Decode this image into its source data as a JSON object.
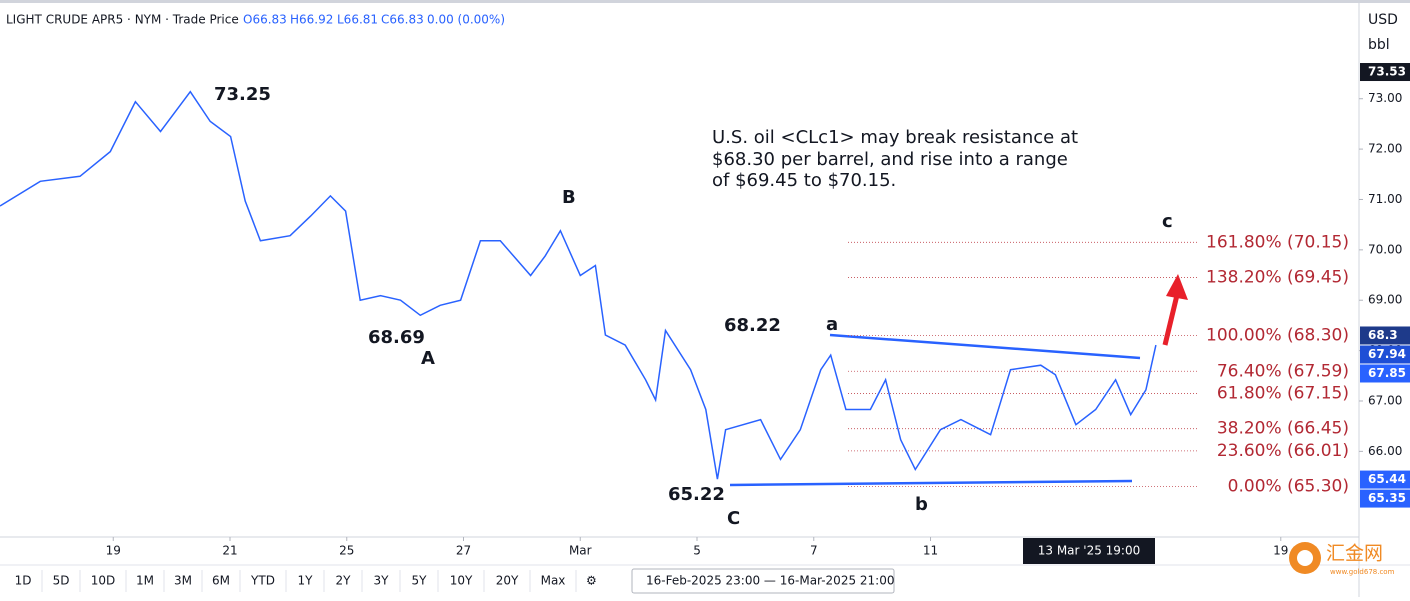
{
  "header": {
    "symbol": "LIGHT CRUDE APR5 · NYM · Trade Price",
    "open": "O66.83",
    "high": "H66.92",
    "low": "L66.81",
    "close": "C66.83",
    "change": "0.00 (0.00%)"
  },
  "units": {
    "currency": "USD",
    "unit": "bbl"
  },
  "chart_data": {
    "type": "line",
    "x": [
      -1.94,
      -1.25,
      -0.57,
      -0.05,
      0.38,
      0.81,
      1.32,
      1.66,
      2.01,
      2.26,
      2.52,
      3.03,
      3.38,
      3.72,
      3.98,
      4.23,
      4.58,
      4.92,
      5.26,
      5.6,
      5.95,
      6.29,
      6.63,
      7.15,
      7.4,
      7.66,
      8.0,
      8.26,
      8.43,
      8.77,
      9.12,
      9.29,
      9.46,
      9.89,
      10.15,
      10.35,
      10.49,
      11.09,
      11.43,
      11.77,
      12.12,
      12.29,
      12.55,
      12.97,
      13.23,
      13.49,
      13.74,
      14.17,
      14.52,
      15.03,
      15.37,
      15.89,
      16.14,
      16.49,
      16.83,
      17.17,
      17.43,
      17.69,
      17.86
    ],
    "series": [
      {
        "name": "LIGHT CRUDE APR5",
        "color": "#2962ff",
        "values": [
          70.87,
          71.36,
          71.46,
          71.95,
          72.94,
          72.35,
          73.14,
          72.55,
          72.25,
          70.97,
          70.18,
          70.28,
          70.67,
          71.07,
          70.77,
          69.0,
          69.09,
          69.0,
          68.7,
          68.9,
          69.0,
          70.18,
          70.18,
          69.49,
          69.88,
          70.38,
          69.49,
          69.69,
          68.31,
          68.11,
          67.42,
          67.02,
          68.4,
          67.62,
          66.83,
          65.45,
          66.43,
          66.63,
          65.84,
          66.43,
          67.62,
          67.91,
          66.83,
          66.83,
          67.42,
          66.23,
          65.64,
          66.43,
          66.63,
          66.33,
          67.62,
          67.71,
          67.52,
          66.53,
          66.83,
          67.42,
          66.73,
          67.22,
          68.11
        ]
      }
    ],
    "xlim": [
      -1.94,
      21.34
    ],
    "xticks": [
      {
        "value": 0,
        "label": "19"
      },
      {
        "value": 2,
        "label": "21"
      },
      {
        "value": 4,
        "label": "25"
      },
      {
        "value": 6,
        "label": "27"
      },
      {
        "value": 8,
        "label": "Mar"
      },
      {
        "value": 10,
        "label": "5"
      },
      {
        "value": 12,
        "label": "7"
      },
      {
        "value": 14,
        "label": "11"
      },
      {
        "value": 20,
        "label": "19"
      }
    ],
    "crosshair_label": "13 Mar '25   19:00",
    "ylim": [
      64.3,
      74.9
    ],
    "yticks": [
      {
        "value": 66,
        "label": "66.00"
      },
      {
        "value": 67,
        "label": "67.00"
      },
      {
        "value": 68,
        "label": "68.00"
      },
      {
        "value": 69,
        "label": "69.00"
      },
      {
        "value": 70,
        "label": "70.00"
      },
      {
        "value": 71,
        "label": "71.00"
      },
      {
        "value": 72,
        "label": "72.00"
      },
      {
        "value": 73,
        "label": "73.00"
      }
    ],
    "price_tags": [
      {
        "value": 73.53,
        "color": "#131722"
      },
      {
        "value": 68.3,
        "color": "#1e3a8a"
      },
      {
        "value": 67.94,
        "color": "#1f4fd6"
      },
      {
        "value": 67.85,
        "color": "#2962ff"
      },
      {
        "value": 65.44,
        "color": "#2962ff"
      },
      {
        "value": 65.35,
        "color": "#2962ff"
      }
    ],
    "fib_levels": [
      {
        "label": "161.80% (70.15)",
        "value": 70.15
      },
      {
        "label": "138.20% (69.45)",
        "value": 69.45
      },
      {
        "label": "100.00% (68.30)",
        "value": 68.3
      },
      {
        "label": "76.40% (67.59)",
        "value": 67.59
      },
      {
        "label": "61.80% (67.15)",
        "value": 67.15
      },
      {
        "label": "38.20% (66.45)",
        "value": 66.45
      },
      {
        "label": "23.60% (66.01)",
        "value": 66.01
      },
      {
        "label": "0.00% (65.30)",
        "value": 65.3
      }
    ],
    "annotation": [
      "U.S. oil <CLc1> may break resistance at",
      "$68.30 per barrel, and rise into a range",
      "of $69.45 to $70.15."
    ],
    "wave_labels": [
      "73.25",
      "68.69",
      "A",
      "B",
      "68.22",
      "a",
      "65.22",
      "C",
      "b",
      "c"
    ]
  },
  "toolbar": {
    "ranges": [
      "1D",
      "5D",
      "10D",
      "1M",
      "3M",
      "6M",
      "YTD",
      "1Y",
      "2Y",
      "3Y",
      "5Y",
      "10Y",
      "20Y",
      "Max"
    ],
    "date_range": "16-Feb-2025 23:00 — 16-Mar-2025 21:00"
  },
  "watermark": {
    "name": "汇金网",
    "url": "www.gold678.com"
  }
}
